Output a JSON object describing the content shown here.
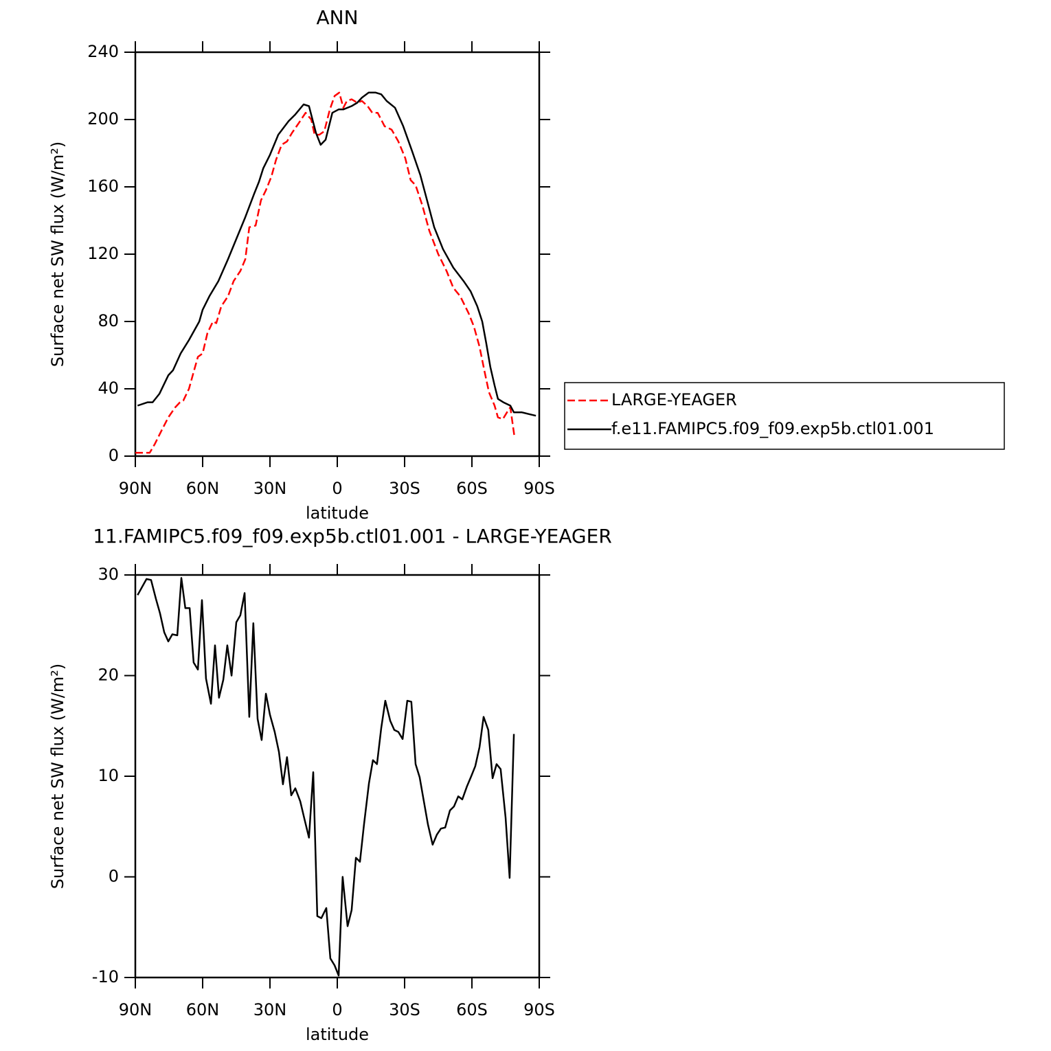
{
  "chart_data": [
    {
      "type": "line",
      "title": "ANN",
      "x_label": "latitude",
      "y_label": "Surface net SW flux (W/m²)",
      "xlim": [
        90,
        -90
      ],
      "xticks": [
        {
          "value": 90,
          "label": "90N"
        },
        {
          "value": 60,
          "label": "60N"
        },
        {
          "value": 30,
          "label": "30N"
        },
        0,
        {
          "value": -30,
          "label": "30S"
        },
        {
          "value": -60,
          "label": "60S"
        },
        {
          "value": -90,
          "label": "90S"
        }
      ],
      "ylim": [
        0,
        240
      ],
      "yticks": [
        0,
        40,
        80,
        120,
        160,
        200,
        240
      ],
      "series": [
        {
          "name": "LARGE-YEAGER",
          "color": "#ff0000",
          "dashed": true,
          "x": [
            90,
            83.6,
            81.4,
            78.4,
            75.3,
            72.2,
            70.1,
            68.6,
            66.1,
            64,
            62.1,
            60,
            57.9,
            55.4,
            53.9,
            51.7,
            48.7,
            46.2,
            43.2,
            41,
            39.2,
            36.4,
            34,
            31.8,
            29.4,
            27.3,
            24.8,
            22.4,
            20.2,
            17.1,
            14.1,
            11.6,
            10.1,
            8,
            5.8,
            3.3,
            1.2,
            -0.9,
            -2.7,
            -4.3,
            -6.4,
            -8.9,
            -11,
            -13.5,
            -15.6,
            -18,
            -21.1,
            -24.2,
            -27.2,
            -30.3,
            -32.7,
            -34.9,
            -37.9,
            -41,
            -45,
            -48.7,
            -51.7,
            -54.8,
            -58.5,
            -60.9,
            -63.4,
            -65.5,
            -67.6,
            -70.1,
            -71.6,
            -73.8,
            -75.6,
            -77.1,
            -79
          ],
          "values": [
            2,
            2,
            7,
            15,
            23,
            29,
            32,
            33,
            40,
            50,
            59,
            61,
            73,
            80,
            79,
            89,
            95,
            104,
            110,
            117,
            136,
            137,
            152,
            158,
            166,
            176,
            185,
            187,
            192,
            198,
            204,
            200,
            191,
            191,
            193,
            206,
            214,
            216,
            207,
            211,
            212,
            210,
            211,
            208,
            204,
            204,
            196,
            194,
            187,
            177,
            164,
            161,
            149,
            134,
            120,
            110,
            100,
            95,
            85,
            77,
            65,
            51,
            38,
            30,
            23,
            22,
            26,
            29,
            11
          ]
        },
        {
          "name": "f.e11.FAMIPC5.f09_f09.exp5b.ctl01.001",
          "color": "#000000",
          "dashed": false,
          "x": [
            89,
            84.5,
            82.3,
            79.3,
            75.3,
            73.2,
            69.8,
            66.1,
            61.5,
            60,
            57,
            53,
            48.7,
            44.7,
            41,
            37,
            34.9,
            33,
            30,
            26.3,
            21.7,
            18.7,
            15,
            12.6,
            9.5,
            7.4,
            5.2,
            2.2,
            -0.6,
            -2.7,
            -6.4,
            -8.9,
            -11,
            -14,
            -17.1,
            -19.6,
            -22,
            -25.7,
            -29.4,
            -33.4,
            -37,
            -40,
            -43.2,
            -47.1,
            -51.7,
            -56.3,
            -59.4,
            -62.4,
            -64.6,
            -66.4,
            -68.2,
            -70.1,
            -71.6,
            -74,
            -77.1,
            -78.7,
            -82.3,
            -85.4,
            -88.5
          ],
          "values": [
            30,
            32,
            32,
            37,
            48,
            51,
            61,
            69,
            80,
            87,
            95,
            104,
            117,
            130,
            142,
            156,
            163,
            171,
            179,
            191,
            199,
            203,
            209,
            208,
            192,
            185,
            188,
            204,
            206,
            206,
            208,
            210,
            213,
            216,
            216,
            215,
            211,
            207,
            196,
            181,
            167,
            152,
            136,
            123,
            112,
            104,
            98,
            89,
            80,
            67,
            53,
            42,
            34,
            32,
            30,
            26,
            26,
            25,
            24
          ]
        }
      ]
    },
    {
      "type": "line",
      "title": "11.FAMIPC5.f09_f09.exp5b.ctl01.001 - LARGE-YEAGER",
      "x_label": "latitude",
      "y_label": "Surface net SW flux (W/m²)",
      "xlim": [
        90,
        -90
      ],
      "xticks": [
        {
          "value": 90,
          "label": "90N"
        },
        {
          "value": 60,
          "label": "60N"
        },
        {
          "value": 30,
          "label": "30N"
        },
        0,
        {
          "value": -30,
          "label": "30S"
        },
        {
          "value": -60,
          "label": "60S"
        },
        {
          "value": -90,
          "label": "90S"
        }
      ],
      "ylim": [
        -10,
        30
      ],
      "yticks": [
        -10,
        0,
        10,
        20,
        30
      ],
      "series": [
        {
          "color": "#000000",
          "dashed": false,
          "x": [
            89,
            85,
            83,
            80.8,
            79,
            77.1,
            75.3,
            73.5,
            71.3,
            69.5,
            67.7,
            65.8,
            64,
            62.1,
            60.3,
            58.5,
            56.3,
            54.5,
            52.7,
            50.8,
            49,
            47.1,
            45,
            43.2,
            41.3,
            39.2,
            37.4,
            35.5,
            33.7,
            31.8,
            30,
            27.9,
            26,
            24.2,
            22.4,
            20.5,
            18.7,
            16.5,
            14.7,
            12.6,
            10.7,
            8.9,
            7.1,
            4.9,
            3.1,
            1.2,
            -0.6,
            -2.4,
            -4.6,
            -6.4,
            -8.3,
            -10.1,
            -11.9,
            -14.1,
            -15.9,
            -17.7,
            -19.6,
            -21.4,
            -23.6,
            -25.4,
            -27.2,
            -29.1,
            -31.2,
            -33,
            -34.9,
            -36.7,
            -38.5,
            -40.4,
            -42.5,
            -44.4,
            -46.2,
            -48.1,
            -50.2,
            -52,
            -53.9,
            -55.7,
            -57.8,
            -59.7,
            -61.5,
            -63.4,
            -65.2,
            -67.3,
            -69.2,
            -71,
            -72.8,
            -75,
            -76.8,
            -78.7
          ],
          "values": [
            28,
            29.6,
            29.5,
            27.6,
            26.2,
            24.3,
            23.4,
            24.1,
            24,
            29.7,
            26.7,
            26.7,
            21.3,
            20.6,
            27.5,
            19.7,
            17.2,
            23,
            17.8,
            19.6,
            23,
            20,
            25.3,
            26,
            28.2,
            15.9,
            25.2,
            15.7,
            13.6,
            18.2,
            16.1,
            14.4,
            12.4,
            9.2,
            11.9,
            8.1,
            8.8,
            7.5,
            5.8,
            3.9,
            10.4,
            -3.9,
            -4.1,
            -3.1,
            -8.1,
            -8.8,
            -9.8,
            0,
            -4.9,
            -3.3,
            1.9,
            1.5,
            5.2,
            9.3,
            11.6,
            11.2,
            14.8,
            17.5,
            15.5,
            14.6,
            14.4,
            13.7,
            17.5,
            17.4,
            11.2,
            9.9,
            7.6,
            5.2,
            3.2,
            4.2,
            4.8,
            4.9,
            6.6,
            7,
            8,
            7.7,
            9,
            10,
            11,
            12.9,
            15.9,
            14.6,
            9.8,
            11.2,
            10.7,
            5.9,
            -0.1,
            14.2
          ]
        }
      ]
    }
  ]
}
